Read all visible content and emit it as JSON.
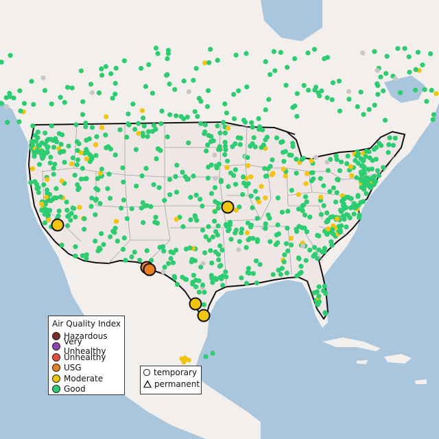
{
  "colors": {
    "water": "#aac6dd",
    "land": "#f3efec",
    "us_land": "#efe7e6",
    "border": "#111111",
    "state_line": "#9a9a9a",
    "good": "#2ecc71",
    "moderate": "#f1c40f",
    "usg": "#e67e22",
    "unhealthy": "#e74c3c",
    "very_unhealthy": "#8e44ad",
    "hazardous": "#7b2d26",
    "offline": "#c8c8c8"
  },
  "legend": {
    "title": "Air Quality Index",
    "items": [
      {
        "label": "Hazardous",
        "color": "#7b2d26"
      },
      {
        "label": "Very Unhealthy",
        "color": "#8e44ad"
      },
      {
        "label": "Unhealthy",
        "color": "#e74c3c"
      },
      {
        "label": "USG",
        "color": "#e67e22"
      },
      {
        "label": "Moderate",
        "color": "#f1c40f"
      },
      {
        "label": "Good",
        "color": "#2ecc71"
      }
    ]
  },
  "shape_legend": {
    "temporary": "temporary",
    "permanent": "permanent"
  },
  "large_monitors": [
    {
      "name": "california",
      "category": "moderate"
    },
    {
      "name": "missouri",
      "category": "moderate"
    },
    {
      "name": "texas-west-1",
      "category": "usg"
    },
    {
      "name": "texas-west-2",
      "category": "usg"
    },
    {
      "name": "texas-south-1",
      "category": "moderate"
    },
    {
      "name": "texas-south-2",
      "category": "moderate"
    }
  ]
}
